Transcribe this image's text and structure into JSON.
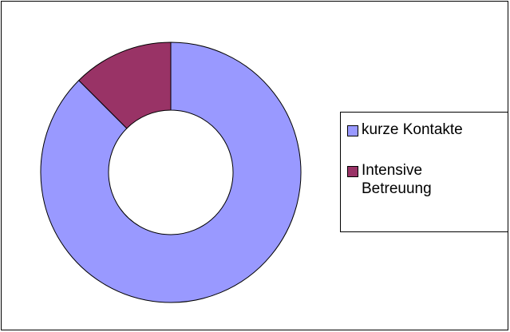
{
  "chart_data": {
    "type": "donut",
    "categories": [
      "kurze Kontakte",
      "Intensive Betreuung"
    ],
    "values": [
      87.5,
      12.5
    ],
    "colors": [
      "#9999ff",
      "#993366"
    ],
    "legend": "right"
  }
}
